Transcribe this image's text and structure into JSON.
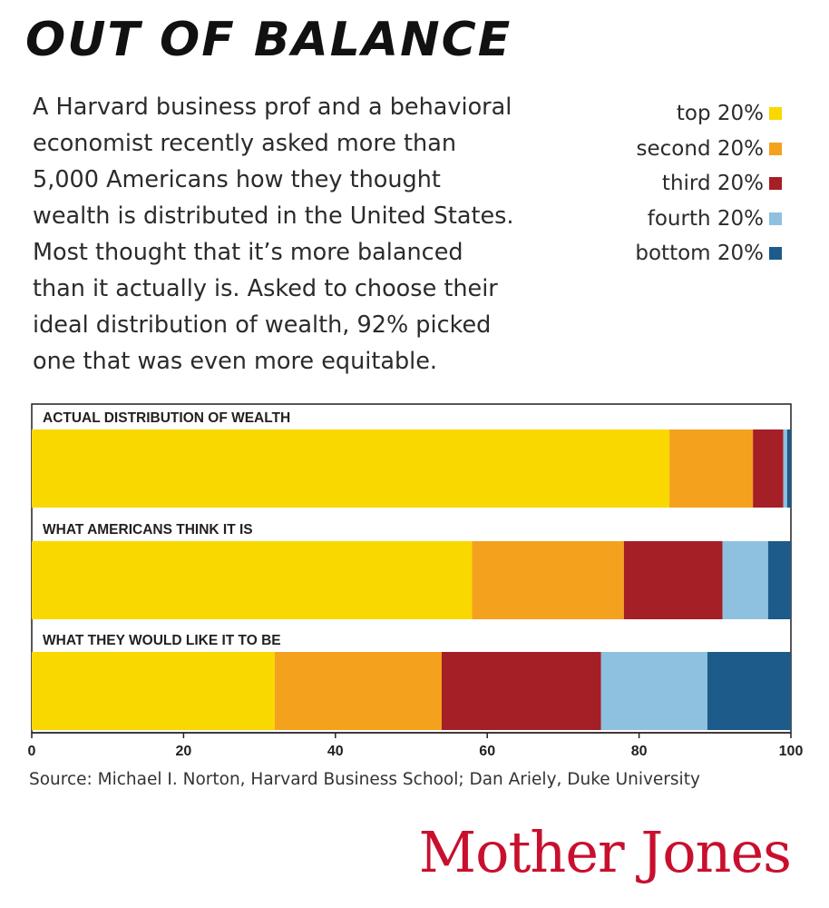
{
  "title": "OUT OF BALANCE",
  "description": [
    "A Harvard business prof and a behavioral",
    "economist recently asked more than",
    "5,000 Americans how they thought",
    "wealth is distributed in the United States.",
    "Most thought that it’s more balanced",
    "than it actually is. Asked to choose their",
    "ideal distribution of wealth, 92% picked",
    "one that was even more equitable."
  ],
  "legend": [
    {
      "label": "top 20%",
      "color": "#f9d800"
    },
    {
      "label": "second 20%",
      "color": "#f4a21e"
    },
    {
      "label": "third 20%",
      "color": "#a51f26"
    },
    {
      "label": "fourth 20%",
      "color": "#8ec1e0"
    },
    {
      "label": "bottom 20%",
      "color": "#1d5b8a"
    }
  ],
  "chart_data": {
    "type": "bar",
    "orientation": "horizontal",
    "stacked": true,
    "categories": [
      "ACTUAL DISTRIBUTION OF WEALTH",
      "WHAT AMERICANS THINK IT IS",
      "WHAT THEY WOULD LIKE IT TO BE"
    ],
    "series": [
      {
        "name": "top 20%",
        "color": "#f9d800",
        "values": [
          84,
          58,
          32
        ]
      },
      {
        "name": "second 20%",
        "color": "#f4a21e",
        "values": [
          11,
          20,
          22
        ]
      },
      {
        "name": "third 20%",
        "color": "#a51f26",
        "values": [
          4,
          13,
          21
        ]
      },
      {
        "name": "fourth 20%",
        "color": "#8ec1e0",
        "values": [
          0.5,
          6,
          14
        ]
      },
      {
        "name": "bottom 20%",
        "color": "#1d5b8a",
        "values": [
          0.5,
          3,
          11
        ]
      }
    ],
    "xlim": [
      0,
      100
    ],
    "xticks": [
      0,
      20,
      40,
      60,
      80,
      100
    ],
    "title": "",
    "xlabel": "",
    "ylabel": "",
    "grid": false,
    "legend_position": "top-right"
  },
  "source": "Source: Michael I. Norton, Harvard Business School; Dan Ariely, Duke University",
  "logo": "Mother Jones"
}
